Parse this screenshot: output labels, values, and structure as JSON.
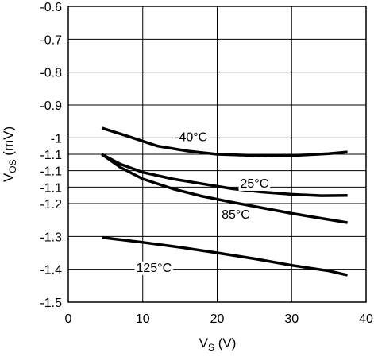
{
  "chart_data": {
    "type": "line",
    "xlabel": {
      "main": "V",
      "sub": "S",
      "unit": " (V)"
    },
    "ylabel": {
      "main": "V",
      "sub": "OS",
      "unit": " (mV)"
    },
    "xlim": [
      0,
      40
    ],
    "ylim": [
      -1.5,
      -0.6
    ],
    "x_ticks": [
      0,
      10,
      20,
      30,
      40
    ],
    "x_tick_labels": [
      "0",
      "10",
      "20",
      "30",
      "40"
    ],
    "y_ticks": [
      -0.6,
      -0.7,
      -0.8,
      -0.9,
      -1.0,
      -1.05,
      -1.1,
      -1.15,
      -1.2,
      -1.3,
      -1.4,
      -1.5
    ],
    "y_tick_labels": [
      "-0.6",
      "-0.7",
      "-0.8",
      "-0.9",
      "-1",
      "-1.1",
      "-1.1",
      "-1.1",
      "-1.2",
      "-1.3",
      "-1.4",
      "-1.5"
    ],
    "grid": true,
    "series": [
      {
        "name": "-40°C",
        "label_at": [
          16.5,
          -0.995
        ],
        "x": [
          4.5,
          8,
          12,
          16,
          20,
          24,
          28,
          32,
          35,
          37.5
        ],
        "y": [
          -0.97,
          -0.995,
          -1.025,
          -1.04,
          -1.05,
          -1.053,
          -1.055,
          -1.052,
          -1.048,
          -1.043
        ]
      },
      {
        "name": "25°C",
        "label_at": [
          25,
          -1.137
        ],
        "x": [
          4.5,
          7,
          10,
          14,
          18,
          22,
          26,
          30,
          34,
          37.5
        ],
        "y": [
          -1.05,
          -1.08,
          -1.105,
          -1.125,
          -1.14,
          -1.155,
          -1.165,
          -1.172,
          -1.176,
          -1.175
        ]
      },
      {
        "name": "85°C",
        "label_at": [
          22.5,
          -1.232
        ],
        "x": [
          4.5,
          7,
          10,
          14,
          18,
          22,
          26,
          30,
          34,
          37.5
        ],
        "y": [
          -1.05,
          -1.09,
          -1.125,
          -1.155,
          -1.178,
          -1.196,
          -1.213,
          -1.23,
          -1.245,
          -1.258
        ]
      },
      {
        "name": "125°C",
        "label_at": [
          11.5,
          -1.393
        ],
        "x": [
          4.5,
          10,
          15,
          20,
          25,
          30,
          35,
          37.5
        ],
        "y": [
          -1.303,
          -1.318,
          -1.333,
          -1.35,
          -1.368,
          -1.388,
          -1.405,
          -1.418
        ]
      }
    ]
  }
}
